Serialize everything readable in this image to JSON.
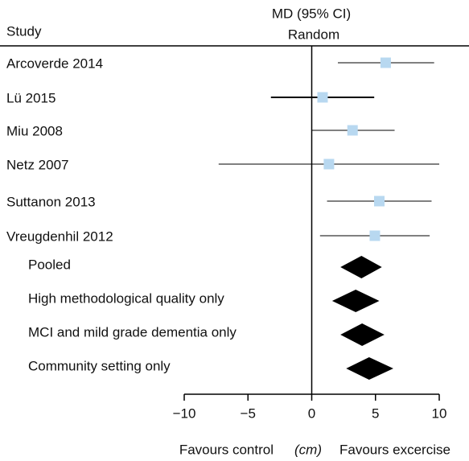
{
  "chart_data": {
    "type": "forest",
    "study_header": "Study",
    "effect_header": "MD (95% CI)",
    "model_label": "Random",
    "left_label": "Favours control",
    "unit_label": "(cm)",
    "right_label": "Favours excercise",
    "square_color": "#b8d8f0",
    "diamond_color": "#000000",
    "studies": [
      {
        "name": "Arcoverde 2014",
        "mean": 5.8,
        "lo": 2.05,
        "hi": 9.6
      },
      {
        "name": "Lü 2015",
        "mean": 0.85,
        "lo": -3.2,
        "hi": 4.9
      },
      {
        "name": "Miu 2008",
        "mean": 3.2,
        "lo": 0.0,
        "hi": 6.5
      },
      {
        "name": "Netz 2007",
        "mean": 1.35,
        "lo": -7.3,
        "hi": 10.0
      },
      {
        "name": "Suttanon 2013",
        "mean": 5.3,
        "lo": 1.2,
        "hi": 9.4
      },
      {
        "name": "Vreugdenhil 2012",
        "mean": 4.95,
        "lo": 0.65,
        "hi": 9.25
      }
    ],
    "pooled": [
      {
        "name": "Pooled",
        "mean": 3.9,
        "lo": 2.25,
        "hi": 5.5
      },
      {
        "name": "High methodological quality only",
        "mean": 3.45,
        "lo": 1.6,
        "hi": 5.3
      },
      {
        "name": "MCI and mild grade dementia only",
        "mean": 3.95,
        "lo": 2.25,
        "hi": 5.7
      },
      {
        "name": "Community setting only",
        "mean": 4.5,
        "lo": 2.7,
        "hi": 6.4
      }
    ],
    "xlim": [
      -10,
      10
    ],
    "xticks": [
      {
        "value": -10,
        "label": "−10"
      },
      {
        "value": -5,
        "label": "−5"
      },
      0,
      5,
      10
    ]
  }
}
